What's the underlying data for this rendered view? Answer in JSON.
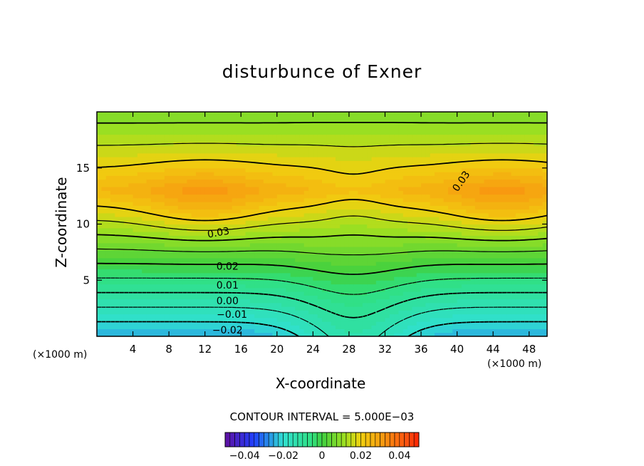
{
  "chart_data": {
    "type": "contour",
    "title": "disturbunce of Exner",
    "xlabel": "X-coordinate",
    "ylabel": "Z-coordinate",
    "x_unit_label": "(×1000 m)",
    "x_ticks": [
      4,
      8,
      12,
      16,
      20,
      24,
      28,
      32,
      36,
      40,
      44,
      48
    ],
    "y_ticks": [
      5,
      10,
      15
    ],
    "xlim": [
      0,
      50
    ],
    "ylim": [
      0,
      20
    ],
    "contour_interval_text": "CONTOUR INTERVAL = 5.000E−03",
    "contour_labels": [
      "0.03",
      "0.03",
      "0.02",
      "0.01",
      "0.00",
      "−0.01",
      "−0.02"
    ],
    "colorbar_ticks": [
      "−0.04",
      "−0.02",
      "0",
      "0.02",
      "0.04"
    ],
    "colorbar_range": [
      -0.05,
      0.05
    ],
    "colors": {
      "min": "#2060ff",
      "neg": "#30e0d0",
      "zero": "#40d040",
      "pos": "#f0d010",
      "max": "#ff4a10"
    }
  }
}
